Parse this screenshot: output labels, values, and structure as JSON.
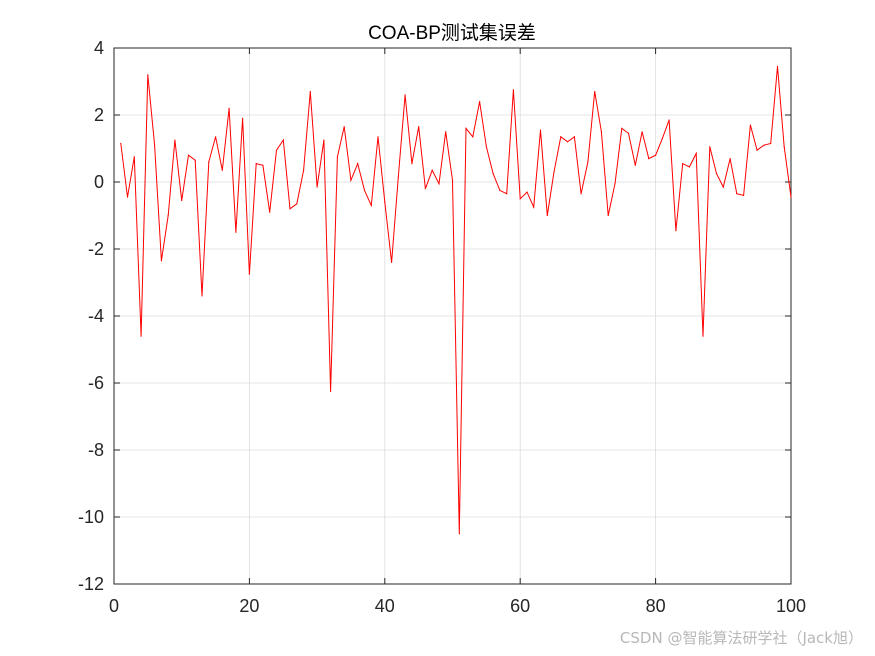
{
  "watermark": "CSDN @智能算法研学社（Jack旭）",
  "colors": {
    "line": "#ff0000",
    "axis": "#262626",
    "grid": "#dcdcdc"
  },
  "chart_data": {
    "type": "line",
    "title": "COA-BP测试集误差",
    "xlabel": "",
    "ylabel": "",
    "xlim": [
      0,
      100
    ],
    "ylim": [
      -12,
      4
    ],
    "xticks": [
      0,
      20,
      40,
      60,
      80,
      100
    ],
    "yticks": [
      -12,
      -10,
      -8,
      -6,
      -4,
      -2,
      0,
      2,
      4
    ],
    "grid": true,
    "x": [
      1,
      2,
      3,
      4,
      5,
      6,
      7,
      8,
      9,
      10,
      11,
      12,
      13,
      14,
      15,
      16,
      17,
      18,
      19,
      20,
      21,
      22,
      23,
      24,
      25,
      26,
      27,
      28,
      29,
      30,
      31,
      32,
      33,
      34,
      35,
      36,
      37,
      38,
      39,
      40,
      41,
      42,
      43,
      44,
      45,
      46,
      47,
      48,
      49,
      50,
      51,
      52,
      53,
      54,
      55,
      56,
      57,
      58,
      59,
      60,
      61,
      62,
      63,
      64,
      65,
      66,
      67,
      68,
      69,
      70,
      71,
      72,
      73,
      74,
      75,
      76,
      77,
      78,
      79,
      80,
      81,
      82,
      83,
      84,
      85,
      86,
      87,
      88,
      89,
      90,
      91,
      92,
      93,
      94,
      95,
      96,
      97,
      98,
      99,
      100
    ],
    "series": [
      {
        "values": [
          1.15,
          -0.45,
          0.75,
          -4.6,
          3.2,
          1.1,
          -2.35,
          -1.0,
          1.25,
          -0.55,
          0.8,
          0.65,
          -3.4,
          0.6,
          1.35,
          0.35,
          2.2,
          -1.5,
          1.9,
          -2.75,
          0.55,
          0.5,
          -0.9,
          0.95,
          1.25,
          -0.8,
          -0.65,
          0.35,
          2.7,
          -0.15,
          1.25,
          -6.25,
          0.75,
          1.65,
          0.05,
          0.55,
          -0.25,
          -0.7,
          1.35,
          -0.6,
          -2.4,
          0.15,
          2.6,
          0.55,
          1.65,
          -0.2,
          0.35,
          -0.05,
          1.5,
          0.05,
          -10.5,
          1.6,
          1.35,
          2.4,
          1.05,
          0.25,
          -0.25,
          -0.35,
          2.75,
          -0.5,
          -0.3,
          -0.75,
          1.55,
          -1.0,
          0.3,
          1.35,
          1.2,
          1.35,
          -0.35,
          0.6,
          2.7,
          1.5,
          -1.0,
          -0.05,
          1.6,
          1.45,
          0.5,
          1.5,
          0.7,
          0.8,
          1.3,
          1.85,
          -1.45,
          0.55,
          0.45,
          0.85,
          -4.6,
          1.05,
          0.25,
          -0.15,
          0.7,
          -0.35,
          -0.4,
          1.7,
          0.95,
          1.1,
          1.15,
          3.45,
          1.05,
          -0.45
        ]
      }
    ]
  }
}
